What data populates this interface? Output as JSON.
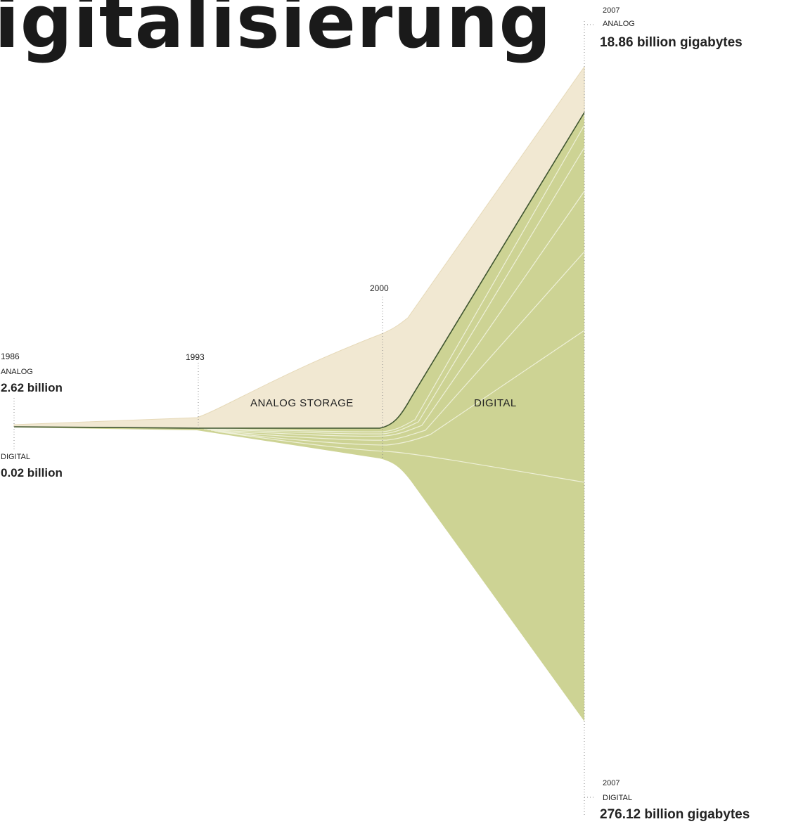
{
  "title": "igitalisierung",
  "chart_data": {
    "type": "area",
    "x": [
      1986,
      1993,
      2000,
      2007
    ],
    "series": [
      {
        "name": "ANALOG",
        "values": [
          2.62,
          2.9,
          6.5,
          18.86
        ]
      },
      {
        "name": "DIGITAL",
        "values": [
          0.02,
          0.5,
          4.0,
          276.12
        ]
      }
    ],
    "region_labels": [
      "ANALOG STORAGE",
      "DIGITAL"
    ],
    "annotations": {
      "start": {
        "year": "1986",
        "analog_label": "ANALOG",
        "analog_value": "2.62 billion",
        "digital_label": "DIGITAL",
        "digital_value": "0.02 billion"
      },
      "mid1": {
        "year": "1993"
      },
      "mid2": {
        "year": "2000"
      },
      "end_analog": {
        "year": "2007",
        "label": "ANALOG",
        "value": "18.86 billion gigabytes"
      },
      "end_digital": {
        "year": "2007",
        "label": "DIGITAL",
        "value": "276.12 billion gigabytes"
      }
    },
    "colors": {
      "analog": "#f1e8d2",
      "analog_edge": "#e6d9b8",
      "digital": "#cdd394",
      "divider": "#3f5530",
      "inner_lines": "#eef0d8"
    },
    "grid": false
  }
}
